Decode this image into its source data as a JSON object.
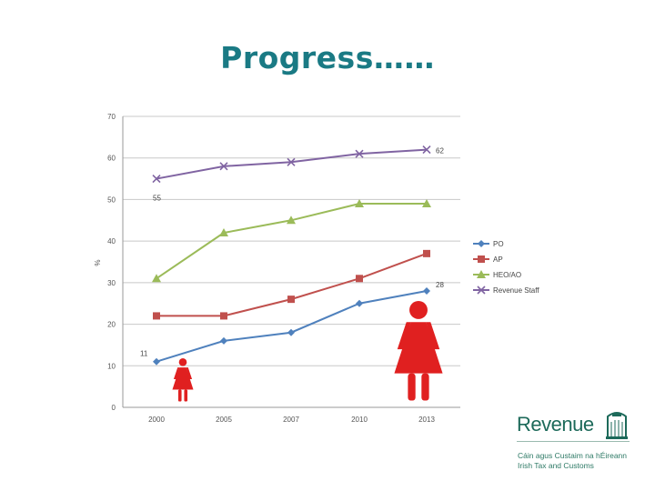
{
  "slide": {
    "title": "Progress……"
  },
  "chart_data": {
    "type": "line",
    "categories": [
      "2000",
      "2005",
      "2007",
      "2010",
      "2013"
    ],
    "ylabel": "%",
    "ylim": [
      0,
      70
    ],
    "yticks": [
      0,
      10,
      20,
      30,
      40,
      50,
      60,
      70
    ],
    "grid": true,
    "legend_position": "right",
    "series": [
      {
        "name": "PO",
        "values": [
          11,
          16,
          18,
          25,
          28
        ],
        "color": "#4f81bd",
        "marker": "diamond"
      },
      {
        "name": "AP",
        "values": [
          22,
          22,
          26,
          31,
          37
        ],
        "color": "#c0504d",
        "marker": "square"
      },
      {
        "name": "HEO/AO",
        "values": [
          31,
          42,
          45,
          49,
          49
        ],
        "color": "#9bbb59",
        "marker": "triangle"
      },
      {
        "name": "Revenue Staff",
        "values": [
          55,
          58,
          59,
          61,
          62
        ],
        "color": "#8064a2",
        "marker": "x"
      }
    ],
    "data_labels": [
      {
        "series": "PO",
        "category": "2000",
        "text": "11"
      },
      {
        "series": "PO",
        "category": "2013",
        "text": "28"
      },
      {
        "series": "Revenue Staff",
        "category": "2000",
        "text": "55"
      },
      {
        "series": "Revenue Staff",
        "category": "2013",
        "text": "62"
      }
    ],
    "annotations": [
      {
        "icon": "woman-icon",
        "meaning": "small",
        "color": "#e02020"
      },
      {
        "icon": "woman-icon",
        "meaning": "large",
        "color": "#e02020"
      }
    ]
  },
  "logo": {
    "wordmark": "Revenue",
    "irish_line": "Cáin agus Custaim na hÉireann",
    "english_line": "Irish Tax and Customs",
    "icon": "harp-icon",
    "color": "#1d6a5a"
  }
}
